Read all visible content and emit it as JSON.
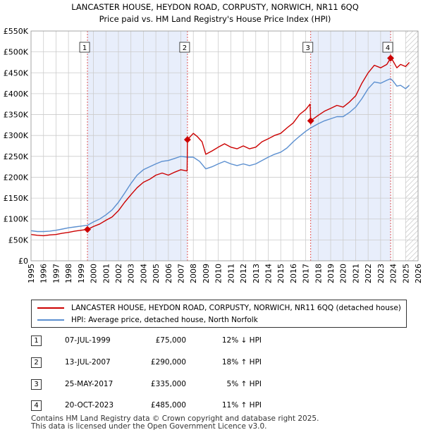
{
  "colors": {
    "property": "#cc0000",
    "hpi": "#5b8fd0",
    "shade": "#e8eefb",
    "grid": "#cccccc"
  },
  "chart_data": {
    "type": "line",
    "title": "LANCASTER HOUSE, HEYDON ROAD, CORPUSTY, NORWICH, NR11 6QQ",
    "subtitle": "Price paid vs. HM Land Registry's House Price Index (HPI)",
    "xlabel": "",
    "ylabel": "",
    "xlim": [
      1995,
      2026
    ],
    "ylim": [
      0,
      550000
    ],
    "y_ticks": [
      {
        "value": 0,
        "label": "£0"
      },
      {
        "value": 50000,
        "label": "£50K"
      },
      {
        "value": 100000,
        "label": "£100K"
      },
      {
        "value": 150000,
        "label": "£150K"
      },
      {
        "value": 200000,
        "label": "£200K"
      },
      {
        "value": 250000,
        "label": "£250K"
      },
      {
        "value": 300000,
        "label": "£300K"
      },
      {
        "value": 350000,
        "label": "£350K"
      },
      {
        "value": 400000,
        "label": "£400K"
      },
      {
        "value": 450000,
        "label": "£450K"
      },
      {
        "value": 500000,
        "label": "£500K"
      },
      {
        "value": 550000,
        "label": "£550K"
      }
    ],
    "x_ticks": [
      "1995",
      "1996",
      "1997",
      "1998",
      "1999",
      "2000",
      "2001",
      "2002",
      "2003",
      "2004",
      "2005",
      "2006",
      "2007",
      "2008",
      "2009",
      "2010",
      "2011",
      "2012",
      "2013",
      "2014",
      "2015",
      "2016",
      "2017",
      "2018",
      "2019",
      "2020",
      "2021",
      "2022",
      "2023",
      "2024",
      "2025",
      "2026"
    ],
    "grid": true,
    "shaded_ranges": [
      [
        1999.52,
        2007.53
      ],
      [
        2017.4,
        2023.8
      ]
    ],
    "hatched_from": 2025.0,
    "series": [
      {
        "name": "LANCASTER HOUSE, HEYDON ROAD, CORPUSTY, NORWICH, NR11 6QQ (detached house)",
        "color": "#cc0000",
        "points": [
          [
            1995.0,
            63000
          ],
          [
            1995.5,
            61000
          ],
          [
            1996.0,
            60000
          ],
          [
            1996.5,
            62000
          ],
          [
            1997.0,
            63000
          ],
          [
            1997.5,
            66000
          ],
          [
            1998.0,
            68000
          ],
          [
            1998.5,
            71000
          ],
          [
            1999.0,
            73000
          ],
          [
            1999.52,
            75000
          ],
          [
            2000.0,
            82000
          ],
          [
            2000.5,
            88000
          ],
          [
            2001.0,
            97000
          ],
          [
            2001.5,
            105000
          ],
          [
            2002.0,
            120000
          ],
          [
            2002.5,
            140000
          ],
          [
            2003.0,
            158000
          ],
          [
            2003.5,
            175000
          ],
          [
            2004.0,
            188000
          ],
          [
            2004.5,
            195000
          ],
          [
            2005.0,
            205000
          ],
          [
            2005.5,
            210000
          ],
          [
            2006.0,
            205000
          ],
          [
            2006.5,
            212000
          ],
          [
            2007.0,
            218000
          ],
          [
            2007.5,
            215000
          ],
          [
            2007.53,
            290000
          ],
          [
            2008.0,
            305000
          ],
          [
            2008.3,
            298000
          ],
          [
            2008.7,
            285000
          ],
          [
            2009.0,
            255000
          ],
          [
            2009.5,
            263000
          ],
          [
            2010.0,
            272000
          ],
          [
            2010.5,
            280000
          ],
          [
            2011.0,
            272000
          ],
          [
            2011.5,
            268000
          ],
          [
            2012.0,
            275000
          ],
          [
            2012.5,
            268000
          ],
          [
            2013.0,
            272000
          ],
          [
            2013.5,
            285000
          ],
          [
            2014.0,
            292000
          ],
          [
            2014.5,
            300000
          ],
          [
            2015.0,
            305000
          ],
          [
            2015.5,
            318000
          ],
          [
            2016.0,
            330000
          ],
          [
            2016.5,
            350000
          ],
          [
            2017.0,
            362000
          ],
          [
            2017.35,
            375000
          ],
          [
            2017.4,
            335000
          ],
          [
            2018.0,
            348000
          ],
          [
            2018.5,
            358000
          ],
          [
            2019.0,
            365000
          ],
          [
            2019.5,
            372000
          ],
          [
            2020.0,
            368000
          ],
          [
            2020.5,
            380000
          ],
          [
            2021.0,
            395000
          ],
          [
            2021.5,
            425000
          ],
          [
            2022.0,
            450000
          ],
          [
            2022.5,
            468000
          ],
          [
            2023.0,
            462000
          ],
          [
            2023.5,
            470000
          ],
          [
            2023.8,
            485000
          ],
          [
            2024.0,
            478000
          ],
          [
            2024.3,
            462000
          ],
          [
            2024.6,
            470000
          ],
          [
            2025.0,
            465000
          ],
          [
            2025.3,
            475000
          ]
        ]
      },
      {
        "name": "HPI: Average price, detached house, North Norfolk",
        "color": "#5b8fd0",
        "points": [
          [
            1995.0,
            72000
          ],
          [
            1995.5,
            70000
          ],
          [
            1996.0,
            70000
          ],
          [
            1996.5,
            71000
          ],
          [
            1997.0,
            73000
          ],
          [
            1997.5,
            76000
          ],
          [
            1998.0,
            79000
          ],
          [
            1998.5,
            81000
          ],
          [
            1999.0,
            83000
          ],
          [
            1999.52,
            85000
          ],
          [
            2000.0,
            93000
          ],
          [
            2000.5,
            100000
          ],
          [
            2001.0,
            110000
          ],
          [
            2001.5,
            122000
          ],
          [
            2002.0,
            140000
          ],
          [
            2002.5,
            162000
          ],
          [
            2003.0,
            185000
          ],
          [
            2003.5,
            205000
          ],
          [
            2004.0,
            218000
          ],
          [
            2004.5,
            225000
          ],
          [
            2005.0,
            232000
          ],
          [
            2005.5,
            238000
          ],
          [
            2006.0,
            240000
          ],
          [
            2006.5,
            245000
          ],
          [
            2007.0,
            250000
          ],
          [
            2007.53,
            248000
          ],
          [
            2008.0,
            248000
          ],
          [
            2008.5,
            238000
          ],
          [
            2009.0,
            220000
          ],
          [
            2009.5,
            225000
          ],
          [
            2010.0,
            232000
          ],
          [
            2010.5,
            238000
          ],
          [
            2011.0,
            232000
          ],
          [
            2011.5,
            228000
          ],
          [
            2012.0,
            232000
          ],
          [
            2012.5,
            228000
          ],
          [
            2013.0,
            232000
          ],
          [
            2013.5,
            240000
          ],
          [
            2014.0,
            248000
          ],
          [
            2014.5,
            255000
          ],
          [
            2015.0,
            260000
          ],
          [
            2015.5,
            270000
          ],
          [
            2016.0,
            285000
          ],
          [
            2016.5,
            298000
          ],
          [
            2017.0,
            310000
          ],
          [
            2017.4,
            318000
          ],
          [
            2018.0,
            328000
          ],
          [
            2018.5,
            335000
          ],
          [
            2019.0,
            340000
          ],
          [
            2019.5,
            345000
          ],
          [
            2020.0,
            345000
          ],
          [
            2020.5,
            355000
          ],
          [
            2021.0,
            368000
          ],
          [
            2021.5,
            388000
          ],
          [
            2022.0,
            412000
          ],
          [
            2022.5,
            428000
          ],
          [
            2023.0,
            425000
          ],
          [
            2023.5,
            432000
          ],
          [
            2023.8,
            436000
          ],
          [
            2024.0,
            430000
          ],
          [
            2024.3,
            418000
          ],
          [
            2024.6,
            420000
          ],
          [
            2025.0,
            412000
          ],
          [
            2025.3,
            420000
          ]
        ]
      }
    ],
    "sales": [
      {
        "num": "1",
        "x": 1999.52,
        "value": 75000
      },
      {
        "num": "2",
        "x": 2007.53,
        "value": 290000
      },
      {
        "num": "3",
        "x": 2017.4,
        "value": 335000
      },
      {
        "num": "4",
        "x": 2023.8,
        "value": 485000
      }
    ]
  },
  "legend": {
    "property": "LANCASTER HOUSE, HEYDON ROAD, CORPUSTY, NORWICH, NR11 6QQ (detached house)",
    "hpi": "HPI: Average price, detached house, North Norfolk"
  },
  "sales_table": [
    {
      "num": "1",
      "date": "07-JUL-1999",
      "price": "£75,000",
      "hpi": "12% ↓ HPI"
    },
    {
      "num": "2",
      "date": "13-JUL-2007",
      "price": "£290,000",
      "hpi": "18% ↑ HPI"
    },
    {
      "num": "3",
      "date": "25-MAY-2017",
      "price": "£335,000",
      "hpi": "5% ↑ HPI"
    },
    {
      "num": "4",
      "date": "20-OCT-2023",
      "price": "£485,000",
      "hpi": "11% ↑ HPI"
    }
  ],
  "footer": {
    "line1": "Contains HM Land Registry data © Crown copyright and database right 2025.",
    "line2": "This data is licensed under the Open Government Licence v3.0."
  }
}
